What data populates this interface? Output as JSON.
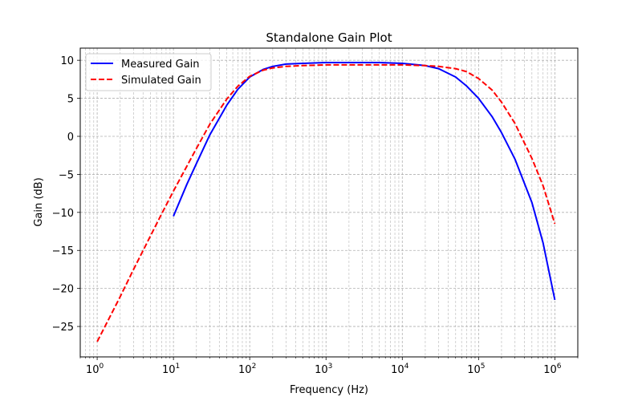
{
  "chart_data": {
    "type": "line",
    "title": "Standalone Gain Plot",
    "xlabel": "Frequency (Hz)",
    "ylabel": "Gain (dB)",
    "x_scale": "log",
    "xlim": [
      0.6,
      2000000
    ],
    "ylim": [
      -29,
      11.6
    ],
    "x_ticks": [
      {
        "value": 1,
        "base": "10",
        "exp": "0"
      },
      {
        "value": 10,
        "base": "10",
        "exp": "1"
      },
      {
        "value": 100,
        "base": "10",
        "exp": "2"
      },
      {
        "value": 1000,
        "base": "10",
        "exp": "3"
      },
      {
        "value": 10000,
        "base": "10",
        "exp": "4"
      },
      {
        "value": 100000,
        "base": "10",
        "exp": "5"
      },
      {
        "value": 1000000,
        "base": "10",
        "exp": "6"
      }
    ],
    "y_ticks": [
      {
        "value": 10,
        "label": "10"
      },
      {
        "value": 5,
        "label": "5"
      },
      {
        "value": 0,
        "label": "0"
      },
      {
        "value": -5,
        "label": "−5"
      },
      {
        "value": -10,
        "label": "−10"
      },
      {
        "value": -15,
        "label": "−15"
      },
      {
        "value": -20,
        "label": "−20"
      },
      {
        "value": -25,
        "label": "−25"
      }
    ],
    "grid": "major and minor, dashed",
    "legend_position": "upper-left",
    "series": [
      {
        "name": "Measured Gain",
        "color": "#0000ff",
        "line_style": "solid",
        "x": [
          10,
          15,
          20,
          30,
          50,
          70,
          100,
          150,
          200,
          300,
          500,
          1000,
          2000,
          5000,
          10000,
          20000,
          30000,
          50000,
          70000,
          100000,
          150000,
          200000,
          300000,
          500000,
          700000,
          1000000
        ],
        "y": [
          -10.5,
          -6.3,
          -3.6,
          0.2,
          4.1,
          6.2,
          7.8,
          8.8,
          9.2,
          9.5,
          9.6,
          9.7,
          9.7,
          9.7,
          9.6,
          9.3,
          8.9,
          7.8,
          6.6,
          5.0,
          2.6,
          0.5,
          -3.0,
          -8.7,
          -14.0,
          -21.5
        ]
      },
      {
        "name": "Simulated Gain",
        "color": "#ff0000",
        "line_style": "dashed",
        "x": [
          1,
          2,
          3,
          5,
          7,
          10,
          20,
          30,
          50,
          70,
          100,
          150,
          200,
          300,
          500,
          1000,
          2000,
          5000,
          10000,
          20000,
          30000,
          50000,
          70000,
          100000,
          150000,
          200000,
          300000,
          500000,
          700000,
          1000000
        ],
        "y": [
          -27.0,
          -21.1,
          -17.5,
          -13.1,
          -10.2,
          -7.2,
          -1.6,
          1.6,
          4.9,
          6.6,
          7.9,
          8.7,
          9.0,
          9.2,
          9.3,
          9.4,
          9.4,
          9.4,
          9.4,
          9.3,
          9.2,
          8.9,
          8.5,
          7.6,
          6.1,
          4.5,
          1.7,
          -2.9,
          -6.5,
          -11.5
        ]
      }
    ]
  }
}
